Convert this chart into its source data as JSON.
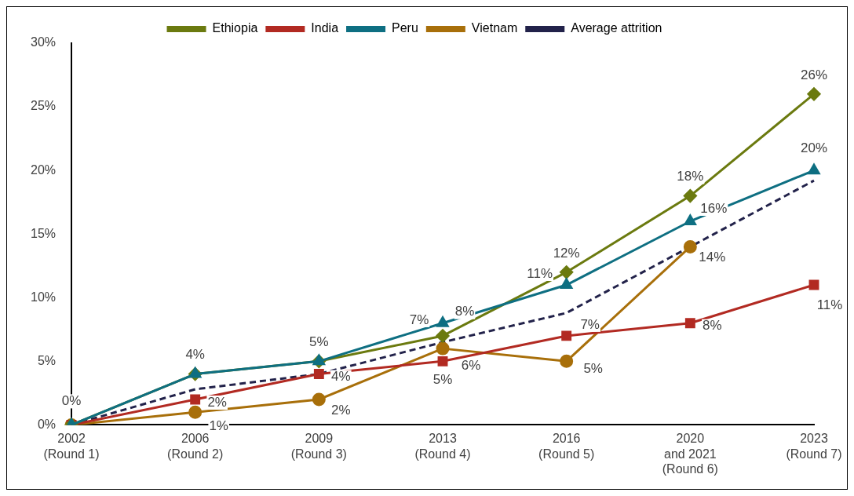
{
  "chart_data": {
    "type": "line",
    "categories": [
      "2002\n(Round 1)",
      "2006\n(Round 2)",
      "2009\n(Round 3)",
      "2013\n(Round 4)",
      "2016\n(Round 5)",
      "2020\nand 2021\n(Round 6)",
      "2023\n(Round 7)"
    ],
    "series": [
      {
        "name": "Ethiopia",
        "color": "#6b7a0f",
        "marker": "diamond",
        "values": [
          0,
          4,
          5,
          7,
          12,
          18,
          26
        ],
        "value_labels": [
          "0%",
          "4%",
          "5%",
          "7%",
          "12%",
          "18%",
          "26%"
        ]
      },
      {
        "name": "India",
        "color": "#b22a22",
        "marker": "square",
        "values": [
          0,
          2,
          4,
          5,
          7,
          8,
          11
        ],
        "value_labels": [
          null,
          "2%",
          "4%",
          "5%",
          "7%",
          "8%",
          "11%"
        ]
      },
      {
        "name": "Peru",
        "color": "#0e6f82",
        "marker": "triangle",
        "values": [
          0,
          4,
          5,
          8,
          11,
          16,
          20
        ],
        "value_labels": [
          null,
          null,
          null,
          "8%",
          "11%",
          "16%",
          "20%"
        ]
      },
      {
        "name": "Vietnam",
        "color": "#a86f0a",
        "marker": "circle",
        "values": [
          0,
          1,
          2,
          6,
          5,
          14,
          null
        ],
        "value_labels": [
          null,
          "1%",
          "2%",
          "6%",
          "5%",
          "14%",
          null
        ]
      },
      {
        "name": "Average attrition",
        "color": "#22224a",
        "marker": "none",
        "line_style": "dashed",
        "values": [
          0,
          2.8,
          4,
          6.5,
          8.8,
          14,
          19.2
        ]
      }
    ],
    "ylim": [
      0,
      30
    ],
    "yticks": [
      {
        "value": 0,
        "label": "0%"
      },
      {
        "value": 5,
        "label": "5%"
      },
      {
        "value": 10,
        "label": "10%"
      },
      {
        "value": 15,
        "label": "15%"
      },
      {
        "value": 20,
        "label": "20%"
      },
      {
        "value": 25,
        "label": "25%"
      },
      {
        "value": 30,
        "label": "30%"
      }
    ],
    "grid": false,
    "legend": "top"
  }
}
